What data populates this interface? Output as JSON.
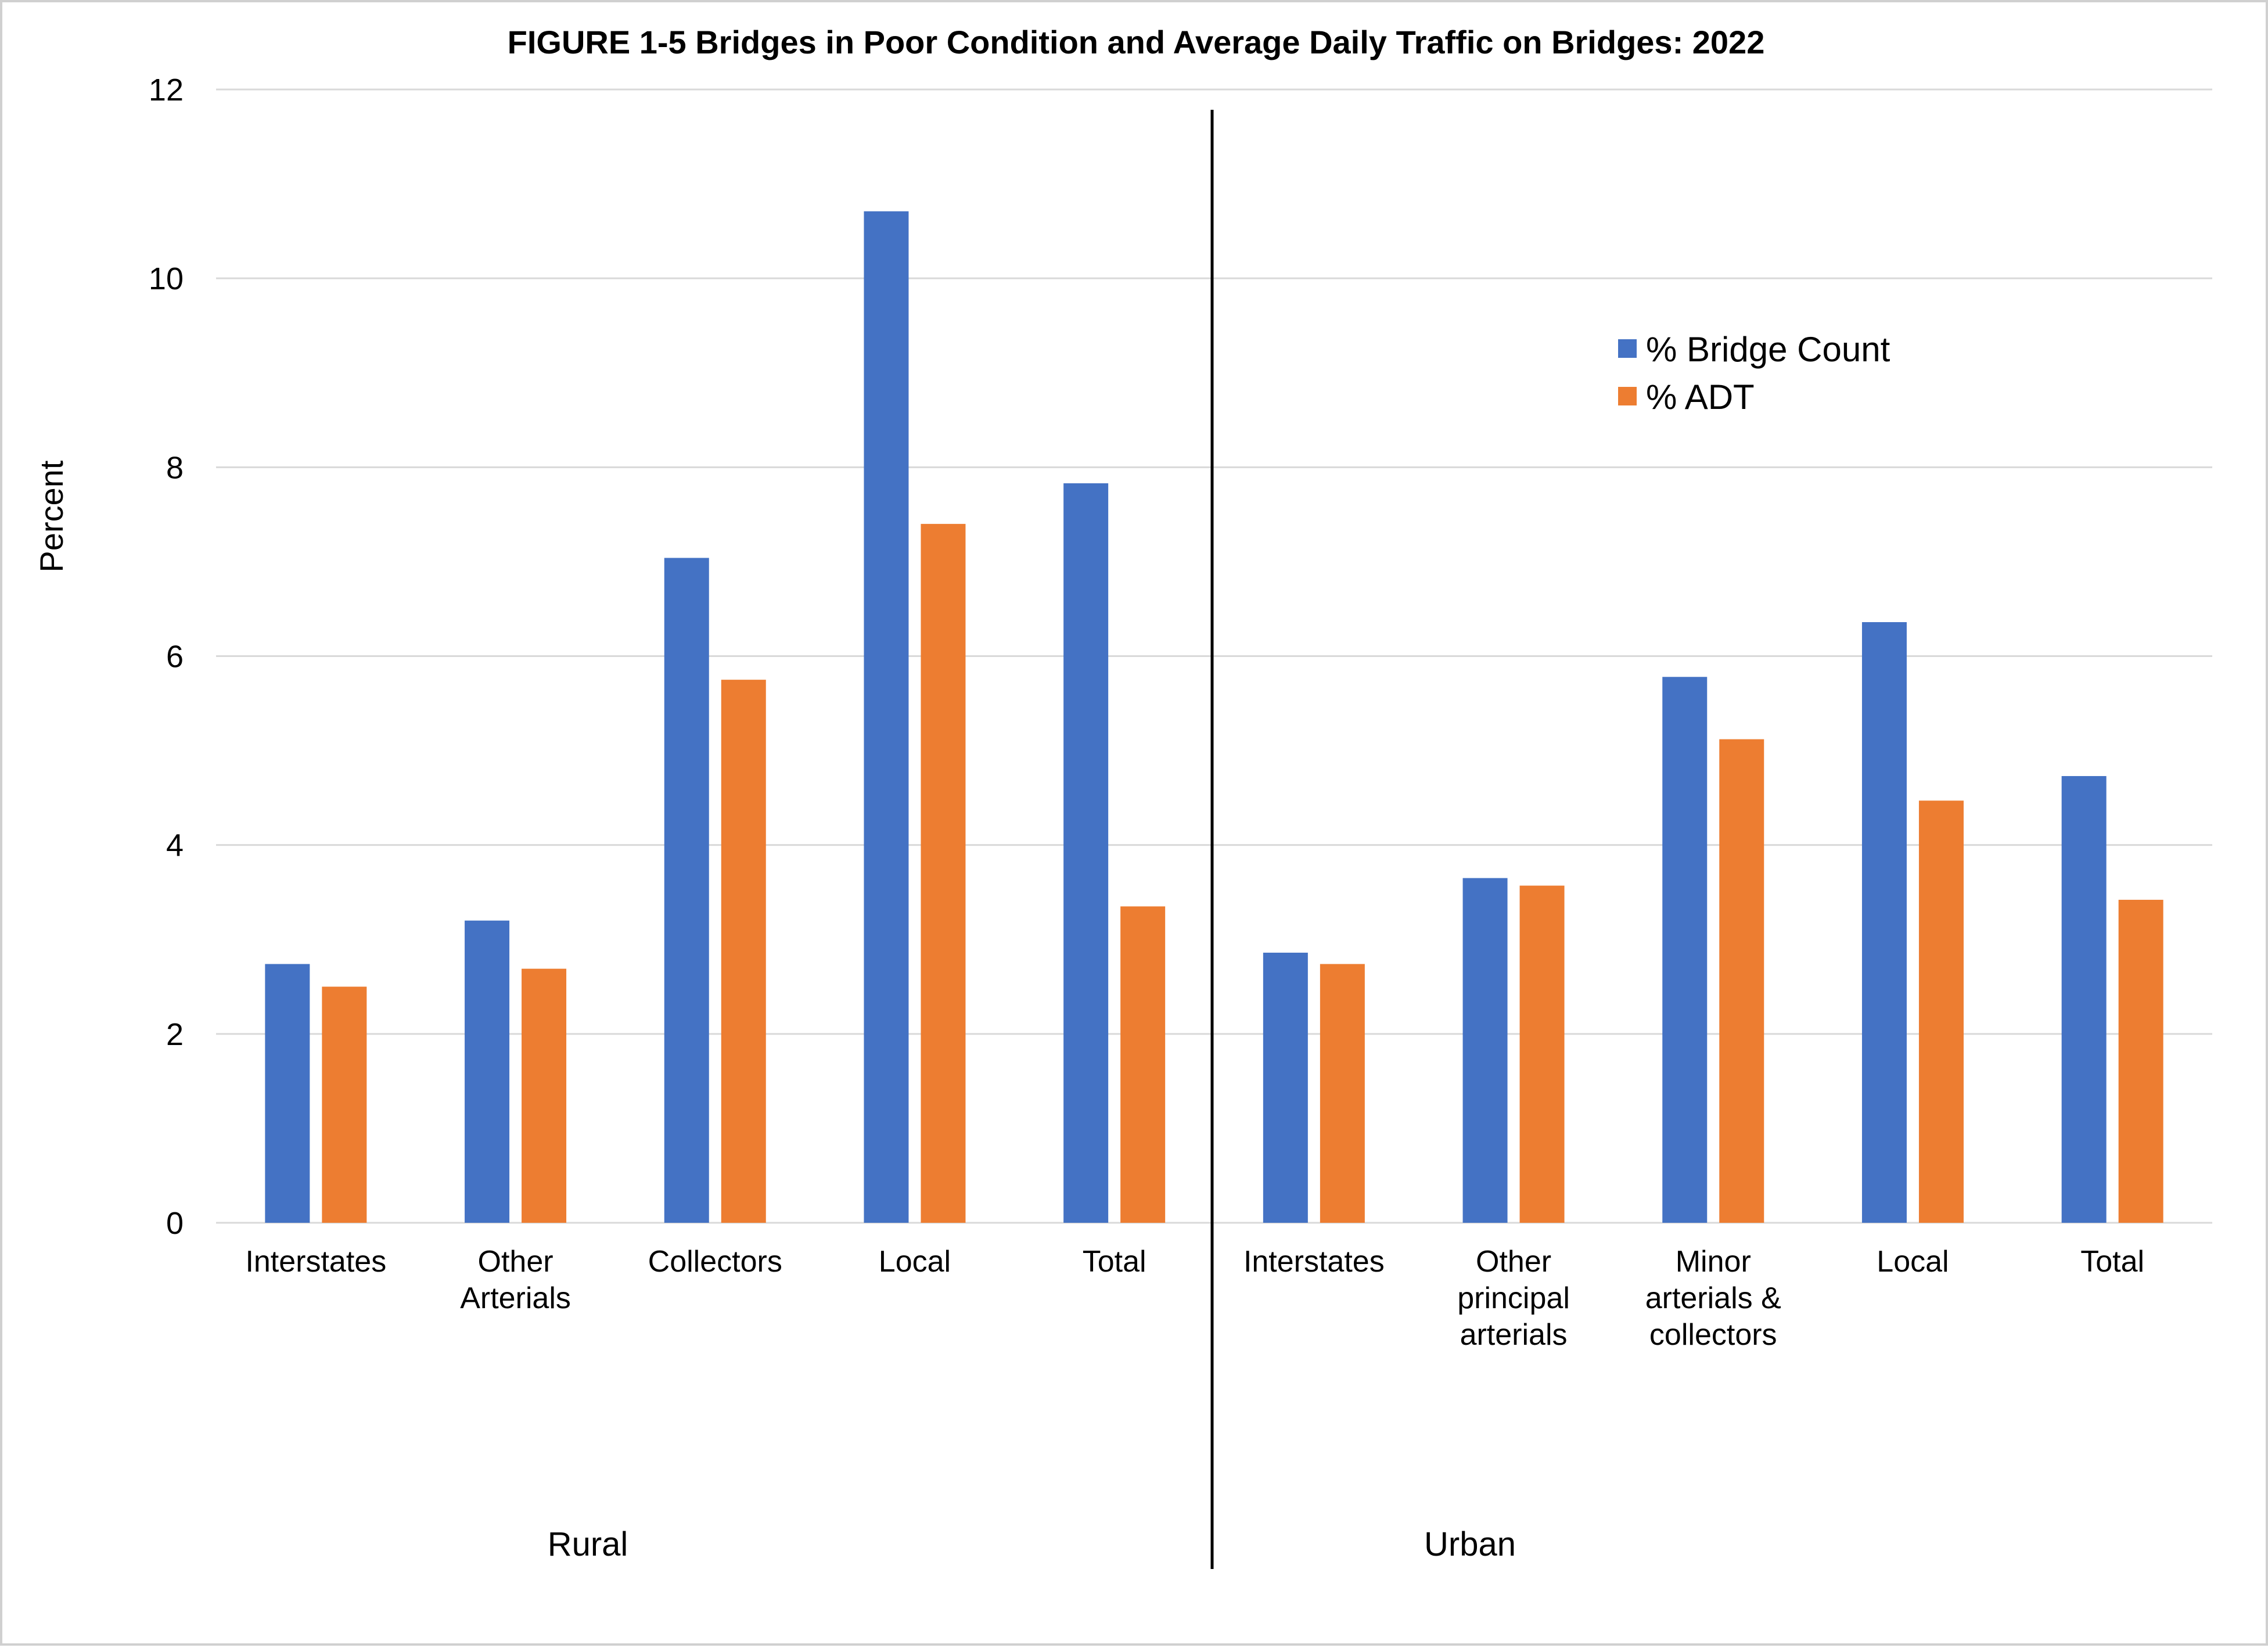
{
  "chart_data": {
    "type": "bar",
    "title": "FIGURE 1-5  Bridges in Poor Condition and Average Daily Traffic on Bridges: 2022",
    "xlabel": "",
    "ylabel": "Percent",
    "ylim": [
      0,
      12
    ],
    "yticks": [
      "0",
      "2",
      "4",
      "6",
      "8",
      "10",
      "12"
    ],
    "grid": true,
    "legend_position": "top-right",
    "groups": [
      {
        "name": "Rural",
        "categories": [
          [
            "Interstates"
          ],
          [
            "Other",
            "Arterials"
          ],
          [
            "Collectors"
          ],
          [
            "Local"
          ],
          [
            "Total"
          ]
        ]
      },
      {
        "name": "Urban",
        "categories": [
          [
            "Interstates"
          ],
          [
            "Other",
            "principal",
            "arterials"
          ],
          [
            "Minor",
            "arterials &",
            "collectors"
          ],
          [
            "Local"
          ],
          [
            "Total"
          ]
        ]
      }
    ],
    "series": [
      {
        "name": "% Bridge Count",
        "color": "#4472C4",
        "values": [
          2.74,
          3.2,
          7.04,
          10.71,
          7.83,
          2.86,
          3.65,
          5.78,
          6.36,
          4.73
        ]
      },
      {
        "name": "% ADT",
        "color": "#ED7D31",
        "values": [
          2.5,
          2.69,
          5.75,
          7.4,
          3.35,
          2.74,
          3.57,
          5.12,
          4.47,
          3.42
        ]
      }
    ]
  }
}
